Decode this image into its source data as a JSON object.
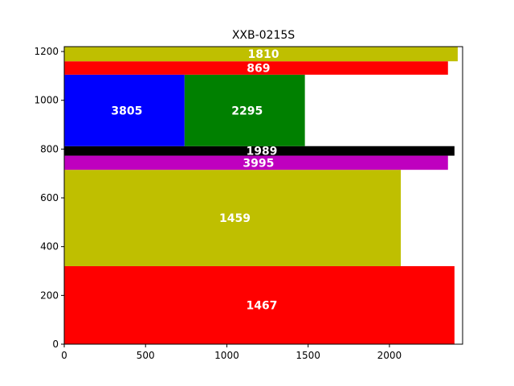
{
  "chart_data": {
    "type": "bar",
    "orientation": "horizontal-treemap-like",
    "title": "XXB-0215S",
    "xlabel": "",
    "ylabel": "",
    "xlim": [
      0,
      2450
    ],
    "ylim": [
      0,
      1220
    ],
    "xticks": [
      0,
      500,
      1000,
      1500,
      2000
    ],
    "yticks": [
      0,
      200,
      400,
      600,
      800,
      1000,
      1200
    ],
    "grid": false,
    "legend": "none",
    "rects": [
      {
        "label": "1467",
        "x0": 0,
        "x1": 2400,
        "y0": 0,
        "y1": 320,
        "color": "#ff0000"
      },
      {
        "label": "1459",
        "x0": 0,
        "x1": 2070,
        "y0": 320,
        "y1": 715,
        "color": "#bfbf00"
      },
      {
        "label": "3995",
        "x0": 0,
        "x1": 2360,
        "y0": 715,
        "y1": 773,
        "color": "#bf00bf"
      },
      {
        "label": "1989",
        "x0": 0,
        "x1": 2400,
        "y0": 773,
        "y1": 812,
        "color": "#000000"
      },
      {
        "label": "3805",
        "x0": 0,
        "x1": 740,
        "y0": 812,
        "y1": 1105,
        "color": "#0000ff"
      },
      {
        "label": "2295",
        "x0": 740,
        "x1": 1480,
        "y0": 812,
        "y1": 1105,
        "color": "#008000"
      },
      {
        "label": "869",
        "x0": 0,
        "x1": 2360,
        "y0": 1105,
        "y1": 1160,
        "color": "#ff0000"
      },
      {
        "label": "1810",
        "x0": 0,
        "x1": 2420,
        "y0": 1160,
        "y1": 1220,
        "color": "#bfbf00"
      }
    ]
  }
}
